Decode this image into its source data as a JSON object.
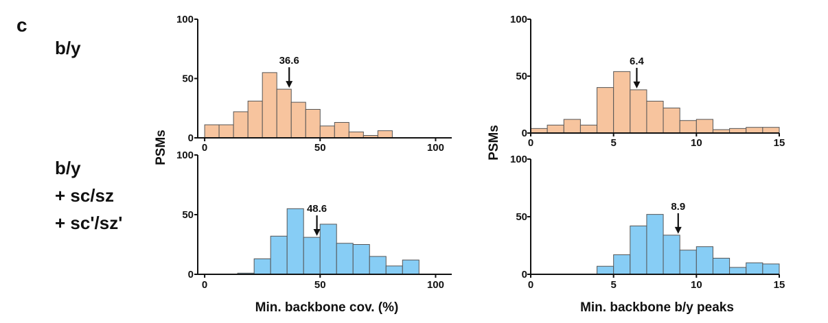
{
  "panel_label": "c",
  "conditions": {
    "top": [
      "b/y"
    ],
    "bottom": [
      "b/y",
      "+ sc/sz",
      "+ sc'/sz'"
    ]
  },
  "colors": {
    "top_fill": "#F7C49E",
    "bottom_fill": "#87CDF5",
    "edge": "#555555",
    "axis": "#111111"
  },
  "chart_data": [
    {
      "type": "bar",
      "name": "top-left",
      "xlabel": "",
      "ylabel": "PSMs",
      "xlim": [
        -3,
        107
      ],
      "ylim": [
        0,
        100
      ],
      "xticks": [
        0,
        50,
        100
      ],
      "yticks": [
        0,
        50,
        100
      ],
      "bin_width": 6.25,
      "bin_starts": [
        0,
        6.25,
        12.5,
        18.75,
        25,
        31.25,
        37.5,
        43.75,
        50,
        56.25,
        62.5,
        68.75,
        75,
        81.25
      ],
      "values": [
        11,
        11,
        22,
        31,
        55,
        41,
        30,
        24,
        10,
        13,
        5,
        2,
        6,
        0
      ],
      "annotation": {
        "label": "36.6",
        "x": 36.6
      }
    },
    {
      "type": "bar",
      "name": "top-right",
      "xlabel": "",
      "ylabel": "PSMs",
      "xlim": [
        0,
        15
      ],
      "ylim": [
        0,
        100
      ],
      "xticks": [
        0,
        5,
        10,
        15
      ],
      "yticks": [
        0,
        50,
        100
      ],
      "bin_width": 1,
      "bin_starts": [
        0,
        1,
        2,
        3,
        4,
        5,
        6,
        7,
        8,
        9,
        10,
        11,
        12,
        13,
        14
      ],
      "values": [
        4,
        7,
        12,
        7,
        40,
        54,
        38,
        28,
        22,
        11,
        12,
        3,
        4,
        5,
        5
      ],
      "annotation": {
        "label": "6.4",
        "x": 6.4
      }
    },
    {
      "type": "bar",
      "name": "bottom-left",
      "xlabel": "Min. backbone cov. (%)",
      "ylabel": "",
      "xlim": [
        -3,
        107
      ],
      "ylim": [
        0,
        100
      ],
      "xticks": [
        0,
        50,
        100
      ],
      "yticks": [
        0,
        50,
        100
      ],
      "bin_width": 7.14,
      "bin_starts": [
        0,
        7.14,
        14.28,
        21.42,
        28.56,
        35.7,
        42.84,
        49.98,
        57.12,
        64.26,
        71.4,
        78.54,
        85.68
      ],
      "values": [
        0,
        0,
        1,
        13,
        32,
        55,
        31,
        42,
        26,
        25,
        15,
        7,
        12
      ],
      "annotation": {
        "label": "48.6",
        "x": 48.6
      }
    },
    {
      "type": "bar",
      "name": "bottom-right",
      "xlabel": "Min. backbone b/y peaks",
      "ylabel": "",
      "xlim": [
        0,
        15
      ],
      "ylim": [
        0,
        100
      ],
      "xticks": [
        0,
        5,
        10,
        15
      ],
      "yticks": [
        0,
        50,
        100
      ],
      "bin_width": 1,
      "bin_starts": [
        0,
        1,
        2,
        3,
        4,
        5,
        6,
        7,
        8,
        9,
        10,
        11,
        12,
        13,
        14
      ],
      "values": [
        0,
        0,
        0,
        0,
        7,
        17,
        42,
        52,
        34,
        21,
        24,
        14,
        6,
        10,
        9
      ],
      "annotation": {
        "label": "8.9",
        "x": 8.9
      }
    }
  ]
}
